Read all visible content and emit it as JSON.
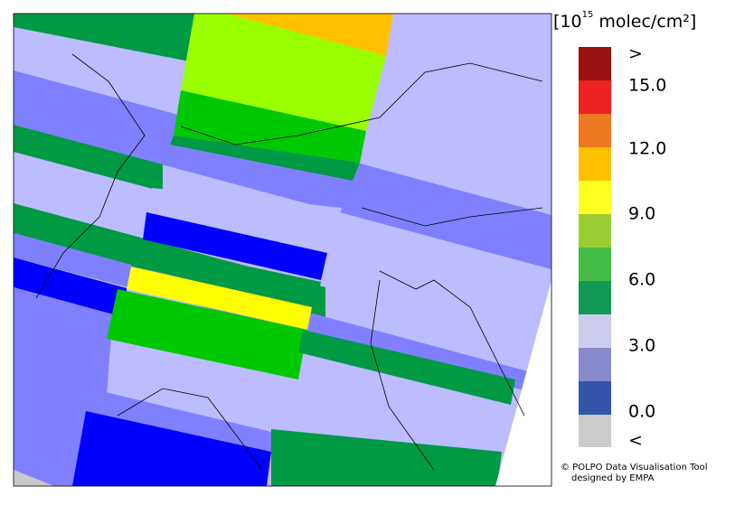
{
  "legend": {
    "title": {
      "prefix": "[10",
      "exponent": "15",
      "unit": " molec/cm²]"
    },
    "labels": [
      ">",
      "15.0",
      "12.0",
      "9.0",
      "6.0",
      "3.0",
      "0.0",
      "<"
    ]
  },
  "credits": [
    "© POLPO Data Visualisation Tool",
    "designed by EMPA"
  ]
}
